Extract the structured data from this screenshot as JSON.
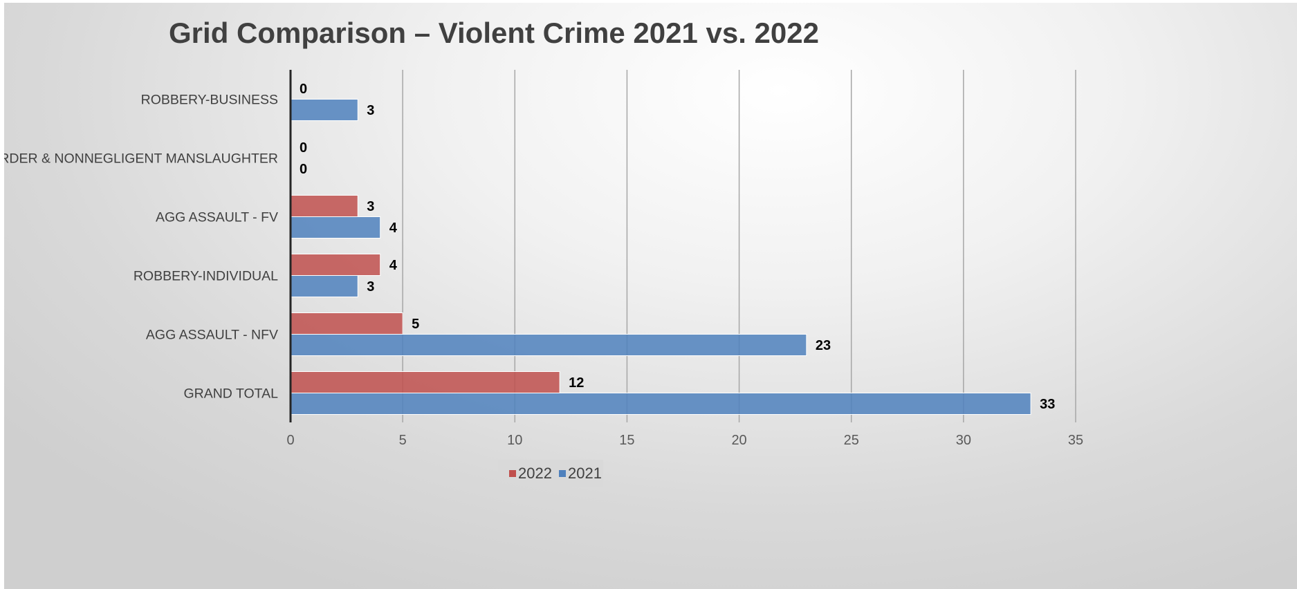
{
  "chart_data": {
    "type": "bar",
    "orientation": "horizontal",
    "title": "Grid Comparison – Violent Crime 2021 vs. 2022",
    "categories": [
      "ROBBERY-BUSINESS",
      "MURDER & NONNEGLIGENT MANSLAUGHTER",
      "AGG ASSAULT - FV",
      "ROBBERY-INDIVIDUAL",
      "AGG ASSAULT - NFV",
      "GRAND TOTAL"
    ],
    "series": [
      {
        "name": "2022",
        "color": "#c0504d",
        "values": [
          0,
          0,
          3,
          4,
          5,
          12
        ]
      },
      {
        "name": "2021",
        "color": "#4f81bd",
        "values": [
          3,
          0,
          4,
          3,
          23,
          33
        ]
      }
    ],
    "xlim": [
      0,
      35
    ],
    "x_ticks": [
      0,
      5,
      10,
      15,
      20,
      25,
      30,
      35
    ],
    "grid": "vertical",
    "legend": "bottom",
    "data_labels": true
  }
}
